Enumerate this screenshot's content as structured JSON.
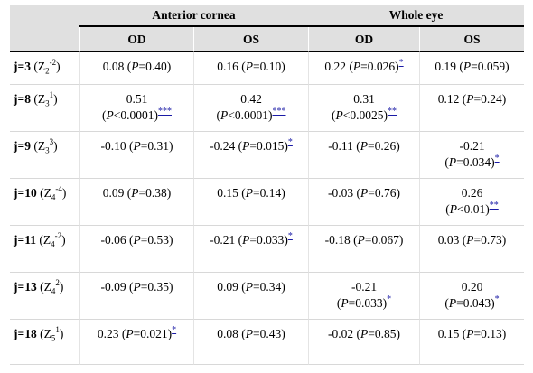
{
  "header": {
    "group1": "Anterior cornea",
    "group2": "Whole eye",
    "cols": [
      "OD",
      "OS",
      "OD",
      "OS"
    ]
  },
  "rows": [
    {
      "j": "j=3",
      "zbase": "Z",
      "zsub": "2",
      "zsup": "-2",
      "cells": [
        {
          "text": "0.08 (P=0.40)",
          "sig": ""
        },
        {
          "text": "0.16 (P=0.10)",
          "sig": ""
        },
        {
          "text": "0.22 (P=0.026)",
          "sig": "*"
        },
        {
          "text": "0.19 (P=0.059)",
          "sig": ""
        }
      ]
    },
    {
      "j": "j=8",
      "zbase": "Z",
      "zsub": "3",
      "zsup": "1",
      "cells": [
        {
          "line1": "0.51",
          "line2": "(P<0.0001)",
          "sig": "***"
        },
        {
          "line1": "0.42",
          "line2": "(P<0.0001)",
          "sig": "***"
        },
        {
          "line1": "0.31",
          "line2": "(P<0.0025)",
          "sig": "**"
        },
        {
          "text": "0.12 (P=0.24)",
          "sig": ""
        }
      ]
    },
    {
      "j": "j=9",
      "zbase": "Z",
      "zsub": "3",
      "zsup": "3",
      "cells": [
        {
          "text": "-0.10 (P=0.31)",
          "sig": ""
        },
        {
          "text": "-0.24 (P=0.015)",
          "sig": "*"
        },
        {
          "text": "-0.11 (P=0.26)",
          "sig": ""
        },
        {
          "line1": "-0.21",
          "line2": "(P=0.034)",
          "sig": "*"
        }
      ]
    },
    {
      "j": "j=10",
      "zbase": "Z",
      "zsub": "4",
      "zsup": "-4",
      "cells": [
        {
          "text": "0.09 (P=0.38)",
          "sig": ""
        },
        {
          "text": "0.15 (P=0.14)",
          "sig": ""
        },
        {
          "text": "-0.03 (P=0.76)",
          "sig": ""
        },
        {
          "line1": "0.26",
          "line2": "(P<0.01)",
          "sig": "**"
        }
      ]
    },
    {
      "j": "j=11",
      "zbase": "Z",
      "zsub": "4",
      "zsup": "-2",
      "cells": [
        {
          "text": "-0.06 (P=0.53)",
          "sig": ""
        },
        {
          "text": "-0.21 (P=0.033)",
          "sig": "*"
        },
        {
          "text": "-0.18 (P=0.067)",
          "sig": ""
        },
        {
          "text": "0.03 (P=0.73)",
          "sig": ""
        }
      ]
    },
    {
      "j": "j=13",
      "zbase": "Z",
      "zsub": "4",
      "zsup": "2",
      "cells": [
        {
          "text": "-0.09 (P=0.35)",
          "sig": ""
        },
        {
          "text": "0.09 (P=0.34)",
          "sig": ""
        },
        {
          "line1": "-0.21",
          "line2": "(P=0.033)",
          "sig": "*"
        },
        {
          "line1": "0.20",
          "line2": "(P=0.043)",
          "sig": "*"
        }
      ]
    },
    {
      "j": "j=18",
      "zbase": "Z",
      "zsub": "5",
      "zsup": "1",
      "cells": [
        {
          "text": "0.23 (P=0.021)",
          "sig": "*"
        },
        {
          "text": "0.08 (P=0.43)",
          "sig": ""
        },
        {
          "text": "-0.02 (P=0.85)",
          "sig": ""
        },
        {
          "text": "0.15 (P=0.13)",
          "sig": ""
        }
      ]
    }
  ]
}
